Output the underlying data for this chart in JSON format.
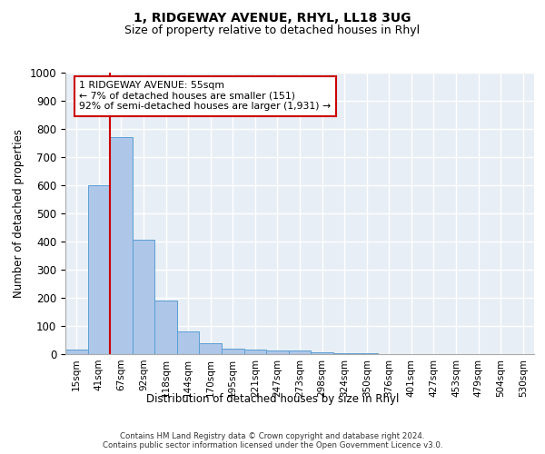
{
  "title1": "1, RIDGEWAY AVENUE, RHYL, LL18 3UG",
  "title2": "Size of property relative to detached houses in Rhyl",
  "xlabel": "Distribution of detached houses by size in Rhyl",
  "ylabel": "Number of detached properties",
  "bar_labels": [
    "15sqm",
    "41sqm",
    "67sqm",
    "92sqm",
    "118sqm",
    "144sqm",
    "170sqm",
    "195sqm",
    "221sqm",
    "247sqm",
    "273sqm",
    "298sqm",
    "324sqm",
    "350sqm",
    "376sqm",
    "401sqm",
    "427sqm",
    "453sqm",
    "479sqm",
    "504sqm",
    "530sqm"
  ],
  "bar_values": [
    15,
    600,
    770,
    405,
    190,
    80,
    40,
    18,
    15,
    12,
    12,
    8,
    3,
    2,
    1,
    1,
    0,
    0,
    0,
    0,
    0
  ],
  "bar_color": "#aec6e8",
  "bar_edge_color": "#5a9fd4",
  "vline_color": "#cc0000",
  "annotation_text": "1 RIDGEWAY AVENUE: 55sqm\n← 7% of detached houses are smaller (151)\n92% of semi-detached houses are larger (1,931) →",
  "annotation_box_color": "#ffffff",
  "annotation_box_edge": "#cc0000",
  "ylim": [
    0,
    1000
  ],
  "yticks": [
    0,
    100,
    200,
    300,
    400,
    500,
    600,
    700,
    800,
    900,
    1000
  ],
  "footer": "Contains HM Land Registry data © Crown copyright and database right 2024.\nContains public sector information licensed under the Open Government Licence v3.0.",
  "bg_color": "#e8eef5",
  "grid_color": "#ffffff"
}
